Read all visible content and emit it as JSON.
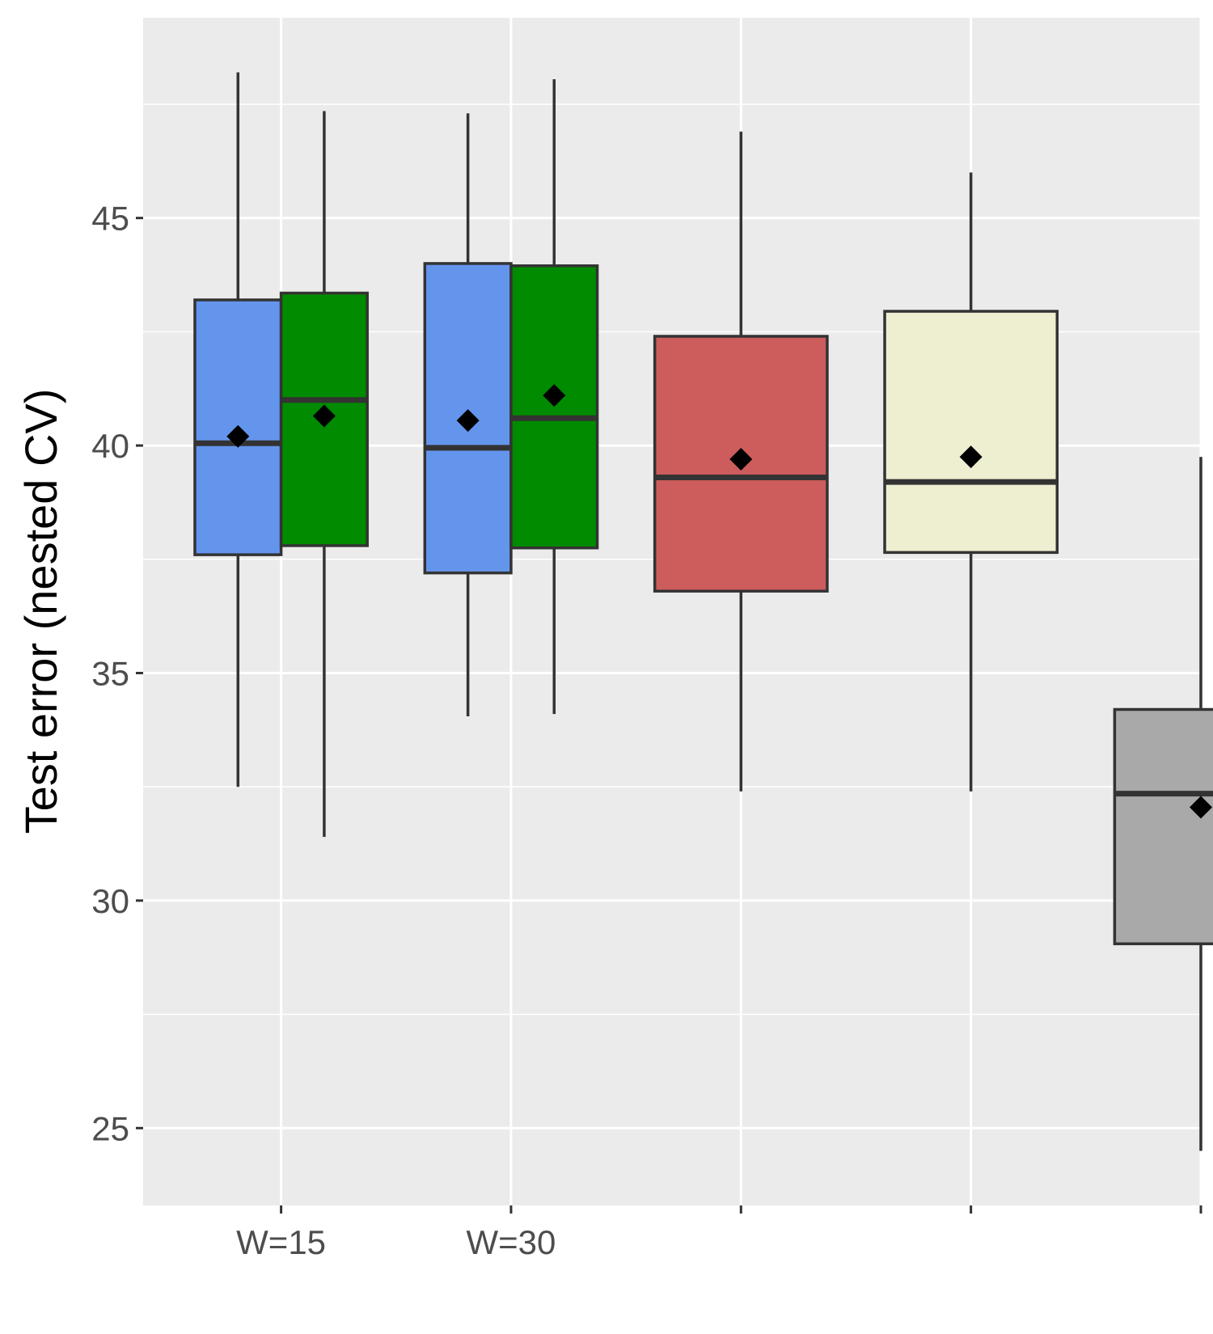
{
  "chart_data": {
    "type": "box",
    "ylabel": "Test error (nested CV)",
    "ylim": [
      23.3,
      49.4
    ],
    "y_ticks": [
      25,
      30,
      35,
      40,
      45
    ],
    "y_tick_labels": [
      "25",
      "30",
      "35",
      "40",
      "45"
    ],
    "grid": true,
    "categories": [
      "W=15",
      "W=30",
      "",
      "",
      ""
    ],
    "boxes": [
      {
        "category": "W=15",
        "color": "#6495ED",
        "whisker_low": 32.5,
        "q1": 37.6,
        "median": 40.05,
        "q3": 43.2,
        "whisker_high": 48.2,
        "mean": 40.2
      },
      {
        "category": "W=15",
        "color": "#008B00",
        "whisker_low": 31.4,
        "q1": 37.8,
        "median": 41.0,
        "q3": 43.35,
        "whisker_high": 47.35,
        "mean": 40.65
      },
      {
        "category": "W=30",
        "color": "#6495ED",
        "whisker_low": 34.05,
        "q1": 37.2,
        "median": 39.95,
        "q3": 44.0,
        "whisker_high": 47.3,
        "mean": 40.55
      },
      {
        "category": "W=30",
        "color": "#008B00",
        "whisker_low": 34.1,
        "q1": 37.75,
        "median": 40.6,
        "q3": 43.95,
        "whisker_high": 48.05,
        "mean": 41.1
      },
      {
        "category": "",
        "color": "#CD5C5C",
        "whisker_low": 32.4,
        "q1": 36.8,
        "median": 39.3,
        "q3": 42.4,
        "whisker_high": 46.9,
        "mean": 39.7
      },
      {
        "category": "",
        "color": "#EEEED1",
        "whisker_low": 32.4,
        "q1": 37.65,
        "median": 39.2,
        "q3": 42.95,
        "whisker_high": 46.0,
        "mean": 39.75
      },
      {
        "category": "",
        "color": "#A9A9A9",
        "whisker_low": 24.5,
        "q1": 29.05,
        "median": 32.35,
        "q3": 34.2,
        "whisker_high": 39.75,
        "mean": 32.05
      }
    ]
  }
}
